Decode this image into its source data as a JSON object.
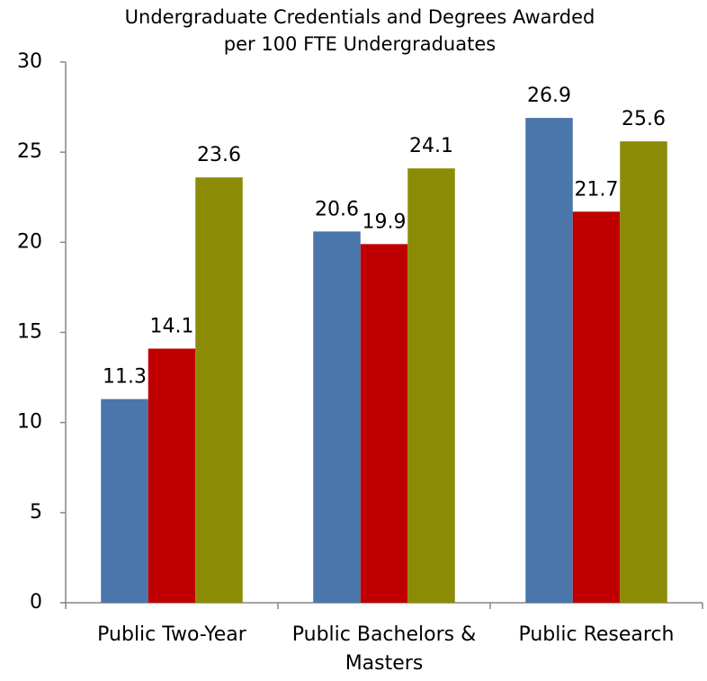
{
  "chart_data": {
    "type": "bar",
    "title": [
      "Undergraduate Credentials and Degrees Awarded",
      "per 100 FTE Undergraduates"
    ],
    "categories": [
      "Public Two-Year",
      "Public Bachelors & Masters",
      "Public Research"
    ],
    "series": [
      {
        "color": "#4a76ab",
        "values": [
          11.3,
          20.6,
          26.9
        ]
      },
      {
        "color": "#c00000",
        "values": [
          14.1,
          19.9,
          21.7
        ]
      },
      {
        "color": "#8b8b06",
        "values": [
          23.6,
          24.1,
          25.6
        ]
      }
    ],
    "ylim": [
      0,
      30
    ],
    "yticks": [
      0,
      5,
      10,
      15,
      20,
      25,
      30
    ],
    "grid": false,
    "data_labels": true
  }
}
